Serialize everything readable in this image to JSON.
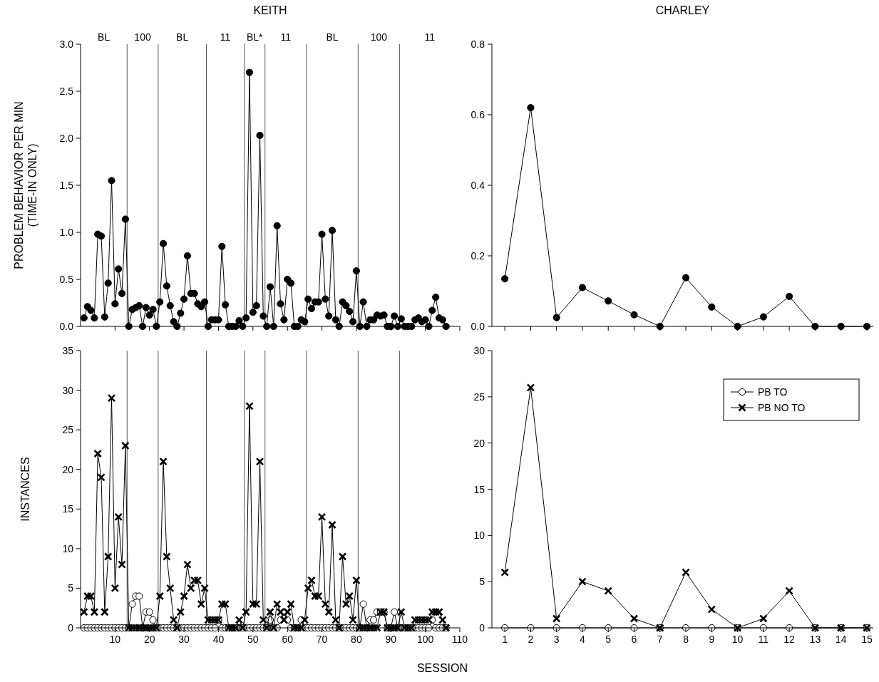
{
  "chart_data": [
    {
      "type": "line",
      "title": "KEITH",
      "ylabel": "PROBLEM BEHAVIOR PER MIN\n(TIME-IN ONLY)",
      "xlim": [
        0,
        110
      ],
      "xticks": [
        10,
        20,
        30,
        40,
        50,
        60,
        70,
        80,
        90,
        100,
        110
      ],
      "ylim": [
        0,
        3
      ],
      "yticks": [
        {
          "value": 0,
          "label": "0.0"
        },
        0.5,
        {
          "value": 1,
          "label": "1.0"
        },
        1.5,
        {
          "value": 2,
          "label": "2.0"
        },
        2.5,
        {
          "value": 3,
          "label": "3.0"
        }
      ],
      "tick_labels": "y",
      "marker": "circle",
      "line_style": "solid",
      "annotations": [
        "BL",
        "100",
        "BL",
        "11",
        "BL*",
        "11",
        "BL",
        "100",
        "11"
      ],
      "x": [
        1,
        2,
        3,
        4,
        5,
        6,
        7,
        8,
        9,
        10,
        11,
        12,
        13,
        14,
        15,
        16,
        17,
        18,
        19,
        20,
        21,
        22,
        23,
        24,
        25,
        26,
        27,
        28,
        29,
        30,
        31,
        32,
        33,
        34,
        35,
        36,
        37,
        38,
        39,
        40,
        41,
        42,
        43,
        44,
        45,
        46,
        47,
        48,
        49,
        50,
        51,
        52,
        53,
        54,
        55,
        56,
        57,
        58,
        59,
        60,
        61,
        62,
        63,
        64,
        65,
        66,
        67,
        68,
        69,
        70,
        71,
        72,
        73,
        74,
        75,
        76,
        77,
        78,
        79,
        80,
        81,
        82,
        83,
        84,
        85,
        86,
        87,
        88,
        89,
        90,
        91,
        92,
        93,
        94,
        95,
        96,
        97,
        98,
        99,
        100,
        101,
        102,
        103,
        104,
        105,
        106
      ],
      "series": [
        {
          "color": "#000000",
          "values": [
            0.09,
            0.21,
            0.17,
            0.09,
            0.98,
            0.96,
            0.1,
            0.46,
            1.55,
            0.24,
            0.61,
            0.35,
            1.14,
            0,
            0.18,
            0.2,
            0.22,
            0,
            0.2,
            0.12,
            0.18,
            0,
            0.26,
            0.88,
            0.43,
            0.22,
            0.05,
            0,
            0.14,
            0.29,
            0.75,
            0.35,
            0.35,
            0.24,
            0.21,
            0.26,
            0,
            0.07,
            0.07,
            0.07,
            0.85,
            0.23,
            0,
            0,
            0,
            0.06,
            0,
            0.09,
            2.7,
            0.15,
            0.22,
            2.03,
            0.11,
            0,
            0.42,
            0,
            1.07,
            0.24,
            0.07,
            0.5,
            0.46,
            0,
            0,
            0.07,
            0.05,
            0.29,
            0.19,
            0.26,
            0.26,
            0.98,
            0.29,
            0.11,
            1.02,
            0.07,
            0,
            0.26,
            0.22,
            0.16,
            0.05,
            0.59,
            0,
            0.26,
            0,
            0.07,
            0.07,
            0.12,
            0.11,
            0.12,
            0,
            0,
            0.11,
            0,
            0.08,
            0,
            0,
            0,
            0.07,
            0.09,
            0.05,
            0.07,
            0,
            0.17,
            0.31,
            0.09,
            0.07,
            0
          ]
        }
      ],
      "ref_lines": [
        {
          "axis": "x",
          "value": 13.5,
          "color": "#555555"
        },
        {
          "axis": "x",
          "value": 22.5,
          "color": "#555555"
        },
        {
          "axis": "x",
          "value": 36.5,
          "color": "#555555"
        },
        {
          "axis": "x",
          "value": 47.5,
          "color": "#555555"
        },
        {
          "axis": "x",
          "value": 53.5,
          "color": "#555555"
        },
        {
          "axis": "x",
          "value": 65.5,
          "color": "#555555"
        },
        {
          "axis": "x",
          "value": 80.5,
          "color": "#555555"
        },
        {
          "axis": "x",
          "value": 92.5,
          "color": "#555555"
        }
      ]
    },
    {
      "type": "line",
      "title": "CHARLEY",
      "xlim": [
        0.5,
        15.25
      ],
      "xticks": [
        1,
        2,
        3,
        4,
        5,
        6,
        7,
        8,
        9,
        10,
        11,
        12,
        13,
        14,
        15
      ],
      "ylim": [
        0,
        0.8
      ],
      "yticks": [
        {
          "value": 0,
          "label": "0.0"
        },
        0.2,
        0.4,
        0.6,
        0.8
      ],
      "tick_labels": "y",
      "marker": "circle",
      "line_style": "solid",
      "x": [
        1,
        2,
        3,
        4,
        5,
        6,
        7,
        8,
        9,
        10,
        11,
        12,
        13,
        14,
        15
      ],
      "series": [
        {
          "color": "#000000",
          "values": [
            0.135,
            0.62,
            0.025,
            0.11,
            0.072,
            0.033,
            0,
            0.138,
            0.055,
            0,
            0.027,
            0.085,
            0,
            0,
            0
          ]
        }
      ]
    },
    {
      "type": "line",
      "ylabel": "INSTANCES",
      "xlabel": "SESSION",
      "xlim": [
        0,
        110
      ],
      "xticks": [
        10,
        20,
        30,
        40,
        50,
        60,
        70,
        80,
        90,
        100,
        110
      ],
      "ylim": [
        0,
        35
      ],
      "yticks": [
        0,
        5,
        10,
        15,
        20,
        25,
        30,
        35
      ],
      "line_style": "solid",
      "x": [
        1,
        2,
        3,
        4,
        5,
        6,
        7,
        8,
        9,
        10,
        11,
        12,
        13,
        14,
        15,
        16,
        17,
        18,
        19,
        20,
        21,
        22,
        23,
        24,
        25,
        26,
        27,
        28,
        29,
        30,
        31,
        32,
        33,
        34,
        35,
        36,
        37,
        38,
        39,
        40,
        41,
        42,
        43,
        44,
        45,
        46,
        47,
        48,
        49,
        50,
        51,
        52,
        53,
        54,
        55,
        56,
        57,
        58,
        59,
        60,
        61,
        62,
        63,
        64,
        65,
        66,
        67,
        68,
        69,
        70,
        71,
        72,
        73,
        74,
        75,
        76,
        77,
        78,
        79,
        80,
        81,
        82,
        83,
        84,
        85,
        86,
        87,
        88,
        89,
        90,
        91,
        92,
        93,
        94,
        95,
        96,
        97,
        98,
        99,
        100,
        101,
        102,
        103,
        104,
        105,
        106
      ],
      "series": [
        {
          "color": "#ffffff",
          "marker": "circle",
          "values": [
            0,
            0,
            0,
            0,
            0,
            0,
            0,
            0,
            0,
            0,
            0,
            0,
            0,
            0,
            3,
            4,
            4,
            0,
            2,
            2,
            1,
            0,
            0,
            0,
            0,
            0,
            0,
            0,
            0,
            0,
            0,
            0,
            0,
            0,
            0,
            0,
            0,
            0,
            0,
            1,
            0,
            0,
            0,
            0,
            0,
            0,
            0,
            0,
            0,
            0,
            0,
            0,
            0,
            0,
            1,
            0,
            0,
            1,
            2,
            1,
            0,
            0,
            0,
            1,
            0,
            0,
            0,
            0,
            0,
            0,
            0,
            0,
            0,
            0,
            0,
            0,
            0,
            0,
            0,
            0,
            0,
            3,
            0,
            1,
            1,
            2,
            2,
            2,
            0,
            0,
            2,
            0,
            0,
            0,
            0,
            0,
            0,
            0,
            0,
            0,
            0,
            1,
            0,
            0,
            0,
            0
          ]
        },
        {
          "color": "#000000",
          "marker": "cross",
          "values": [
            2,
            4,
            4,
            2,
            22,
            19,
            2,
            9,
            29,
            5,
            14,
            8,
            23,
            0,
            0,
            0,
            0,
            0,
            0,
            0,
            0,
            0,
            4,
            21,
            9,
            5,
            1,
            0,
            2,
            4,
            8,
            5,
            6,
            6,
            3,
            5,
            1,
            1,
            1,
            1,
            3,
            3,
            0,
            0,
            0,
            1,
            0,
            2,
            28,
            3,
            3,
            21,
            1,
            0,
            2,
            0,
            3,
            2,
            1,
            2,
            3,
            0,
            0,
            0,
            1,
            5,
            6,
            4,
            4,
            14,
            3,
            2,
            13,
            1,
            0,
            9,
            3,
            4,
            1,
            6,
            0,
            0,
            0,
            0,
            0,
            0,
            2,
            2,
            0,
            0,
            0,
            0,
            2,
            0,
            0,
            0,
            1,
            1,
            1,
            1,
            1,
            2,
            2,
            2,
            1,
            0
          ]
        }
      ],
      "ref_lines": [
        {
          "axis": "x",
          "value": 13.5,
          "color": "#555555"
        },
        {
          "axis": "x",
          "value": 22.5,
          "color": "#555555"
        },
        {
          "axis": "x",
          "value": 36.5,
          "color": "#555555"
        },
        {
          "axis": "x",
          "value": 47.5,
          "color": "#555555"
        },
        {
          "axis": "x",
          "value": 53.5,
          "color": "#555555"
        },
        {
          "axis": "x",
          "value": 65.5,
          "color": "#555555"
        },
        {
          "axis": "x",
          "value": 80.5,
          "color": "#555555"
        },
        {
          "axis": "x",
          "value": 92.5,
          "color": "#555555"
        }
      ]
    },
    {
      "type": "line",
      "xlim": [
        0.5,
        15.25
      ],
      "xticks": [
        1,
        2,
        3,
        4,
        5,
        6,
        7,
        8,
        9,
        10,
        11,
        12,
        13,
        14,
        15
      ],
      "ylim": [
        0,
        30
      ],
      "yticks": [
        0,
        5,
        10,
        15,
        20,
        25,
        30
      ],
      "legend": "top right",
      "line_style": "solid",
      "x": [
        1,
        2,
        3,
        4,
        5,
        6,
        7,
        8,
        9,
        10,
        11,
        12,
        13,
        14,
        15
      ],
      "series": [
        {
          "name": "PB TO",
          "color": "#ffffff",
          "marker": "circle",
          "values": [
            0,
            0,
            0,
            0,
            0,
            0,
            0,
            0,
            0,
            0,
            0,
            0,
            0,
            0,
            0
          ]
        },
        {
          "name": "PB NO TO",
          "color": "#000000",
          "marker": "cross",
          "values": [
            6,
            26,
            1,
            5,
            4,
            1,
            0,
            6,
            2,
            0,
            1,
            4,
            0,
            0,
            0
          ]
        }
      ]
    }
  ]
}
